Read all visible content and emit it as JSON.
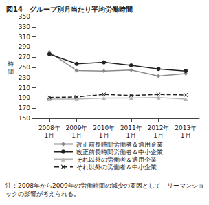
{
  "chart_data": {
    "type": "line",
    "title": "図14　グループ別月当たり平均労働時間",
    "y_label": "時間",
    "categories": [
      "2008年\n1月",
      "2009年\n1月",
      "2010年\n1月",
      "2011年\n1月",
      "2012年\n1月",
      "2013年\n1月"
    ],
    "series": [
      {
        "name": "改正前長時間労働者＆適用企業",
        "color": "#8a8a8a",
        "marker": "diamond",
        "line_style": "solid",
        "values": [
          280,
          244,
          243,
          245,
          233,
          238
        ]
      },
      {
        "name": "改正前長時間労働者＆中小企業",
        "color": "#222222",
        "marker": "circle",
        "line_style": "solid",
        "values": [
          276,
          257,
          260,
          254,
          247,
          243
        ]
      },
      {
        "name": "それ以外の労働者＆適用企業",
        "color": "#b4b4b4",
        "marker": "triangle",
        "line_style": "solid",
        "values": [
          188,
          188,
          190,
          190,
          191,
          188
        ]
      },
      {
        "name": "それ以外の労働者＆中小企業",
        "color": "#222222",
        "marker": "x",
        "line_style": "dashed",
        "values": [
          191,
          192,
          197,
          195,
          197,
          196
        ]
      }
    ],
    "ylim": [
      150,
      350
    ],
    "yticks": [
      150,
      170,
      190,
      210,
      230,
      250,
      270,
      290,
      310,
      330,
      350
    ],
    "grid": false,
    "legend": "bottom",
    "annotations": [
      "注：2008年から2009年の労働時間の減少の要因として、リーマンショックの影響が考えられる。"
    ]
  }
}
